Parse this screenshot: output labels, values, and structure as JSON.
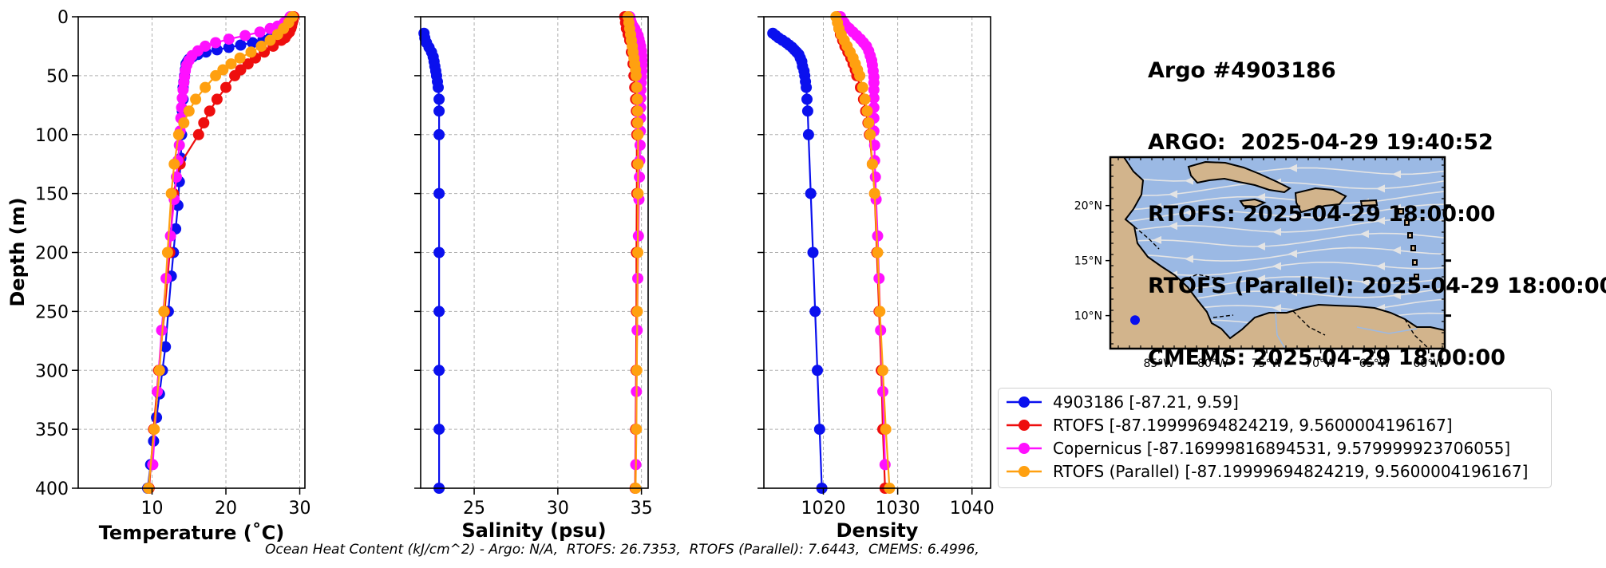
{
  "title": {
    "lines": [
      "Argo #4903186",
      "ARGO:  2025-04-29 19:40:52",
      "RTOFS: 2025-04-29 18:00:00",
      "RTOFS (Parallel): 2025-04-29 18:00:00",
      "CMEMS: 2025-04-29 18:00:00"
    ]
  },
  "footer": "Ocean Heat Content (kJ/cm^2) - Argo: N/A,  RTOFS: 26.7353,  RTOFS (Parallel): 7.6443,  CMEMS: 6.4996,",
  "colors": {
    "argo": "#0a10ee",
    "rtofs": "#ee0e0e",
    "copernicus": "#ff10ff",
    "rtofs_parallel": "#ffa010",
    "ocean": "#9bb9e4",
    "land": "#d2b48c",
    "stream": "#e4e4e4"
  },
  "legend": [
    {
      "label": "4903186 [-87.21, 9.59]",
      "color": "#0a10ee"
    },
    {
      "label": "RTOFS [-87.19999694824219, 9.5600004196167]",
      "color": "#ee0e0e"
    },
    {
      "label": "Copernicus [-87.16999816894531, 9.579999923706055]",
      "color": "#ff10ff"
    },
    {
      "label": "RTOFS (Parallel) [-87.19999694824219, 9.5600004196167]",
      "color": "#ffa010"
    }
  ],
  "map": {
    "xticks": [
      "85°W",
      "80°W",
      "75°W",
      "70°W",
      "65°W",
      "60°W"
    ],
    "yticks": [
      "20°N",
      "15°N",
      "10°N"
    ],
    "float_position": [
      -87.21,
      9.59
    ]
  },
  "chart_data": [
    {
      "type": "line",
      "xlabel": "Temperature (˚C)",
      "ylabel": "Depth (m)",
      "xticks": [
        10,
        20,
        30
      ],
      "yticks": [
        0,
        50,
        100,
        150,
        200,
        250,
        300,
        350,
        400
      ],
      "xlim": [
        0,
        30.7
      ],
      "ylim": [
        400,
        0
      ],
      "grid": true,
      "series": [
        {
          "name": "4903186",
          "depth": [
            14,
            16,
            18,
            20,
            22,
            24,
            26,
            28,
            30,
            32,
            34,
            36,
            38,
            40,
            45,
            50,
            55,
            60,
            70,
            80,
            100,
            120,
            140,
            160,
            180,
            200,
            220,
            250,
            280,
            300,
            320,
            340,
            360,
            380,
            400
          ],
          "values": [
            27.3,
            26.8,
            26.0,
            25.0,
            23.6,
            22.0,
            20.4,
            18.8,
            17.3,
            16.2,
            15.5,
            15.0,
            14.8,
            14.6,
            14.5,
            14.4,
            14.3,
            14.2,
            14.2,
            14.1,
            14.0,
            13.9,
            13.7,
            13.5,
            13.2,
            12.9,
            12.6,
            12.2,
            11.8,
            11.4,
            11.0,
            10.6,
            10.2,
            9.8,
            9.4
          ]
        },
        {
          "name": "RTOFS",
          "depth": [
            0,
            3,
            5,
            8,
            10,
            13,
            15,
            18,
            20,
            25,
            30,
            35,
            40,
            45,
            50,
            60,
            70,
            80,
            90,
            100,
            125,
            150,
            200,
            250,
            300,
            350,
            400
          ],
          "values": [
            29.2,
            29.1,
            29.0,
            28.9,
            28.8,
            28.6,
            28.3,
            28.0,
            27.5,
            26.4,
            25.2,
            24.0,
            23.0,
            22.0,
            21.2,
            20.0,
            18.8,
            17.8,
            17.0,
            16.3,
            13.8,
            12.9,
            12.4,
            11.7,
            10.9,
            10.2,
            9.6
          ]
        },
        {
          "name": "Copernicus",
          "depth": [
            0,
            3,
            5,
            8,
            10,
            13,
            16,
            19,
            22,
            25,
            29,
            33,
            37,
            41,
            46,
            51,
            56,
            62,
            69,
            77,
            86,
            97,
            109,
            122,
            136,
            155,
            186,
            222,
            266,
            318,
            380
          ],
          "values": [
            28.7,
            28.4,
            27.9,
            27.0,
            26.0,
            24.6,
            22.6,
            20.4,
            18.6,
            17.2,
            16.2,
            15.4,
            15.0,
            14.7,
            14.5,
            14.4,
            14.3,
            14.2,
            14.1,
            14.0,
            13.9,
            13.8,
            13.7,
            13.5,
            13.3,
            13.0,
            12.5,
            11.9,
            11.3,
            10.7,
            10.1
          ]
        },
        {
          "name": "RTOFS (Parallel)",
          "depth": [
            0,
            5,
            10,
            15,
            20,
            25,
            30,
            35,
            40,
            45,
            50,
            60,
            70,
            80,
            90,
            100,
            125,
            150,
            200,
            250,
            300,
            350,
            400
          ],
          "values": [
            29.0,
            28.5,
            27.8,
            27.0,
            26.0,
            24.8,
            23.4,
            21.9,
            20.7,
            19.6,
            18.6,
            17.2,
            15.9,
            15.0,
            14.3,
            13.6,
            13.0,
            12.6,
            12.1,
            11.6,
            11.0,
            10.3,
            9.5
          ]
        }
      ]
    },
    {
      "type": "line",
      "xlabel": "Salinity (psu)",
      "xticks": [
        25,
        30,
        35
      ],
      "xlim": [
        21.8,
        35.4
      ],
      "ylim": [
        400,
        0
      ],
      "grid": true,
      "series": [
        {
          "name": "4903186",
          "depth": [
            14,
            18,
            22,
            26,
            30,
            34,
            38,
            42,
            46,
            50,
            55,
            60,
            70,
            80,
            100,
            150,
            200,
            250,
            300,
            350,
            400
          ],
          "values": [
            22.0,
            22.05,
            22.15,
            22.3,
            22.45,
            22.55,
            22.6,
            22.65,
            22.7,
            22.75,
            22.8,
            22.85,
            22.9,
            22.9,
            22.9,
            22.9,
            22.9,
            22.9,
            22.9,
            22.9,
            22.9
          ]
        },
        {
          "name": "RTOFS",
          "depth": [
            0,
            5,
            10,
            15,
            20,
            30,
            40,
            50,
            60,
            70,
            80,
            90,
            100,
            125,
            150,
            200,
            250,
            300,
            350,
            400
          ],
          "values": [
            34.0,
            34.05,
            34.1,
            34.2,
            34.3,
            34.4,
            34.5,
            34.55,
            34.6,
            34.65,
            34.7,
            34.7,
            34.72,
            34.72,
            34.72,
            34.7,
            34.7,
            34.68,
            34.65,
            34.62
          ]
        },
        {
          "name": "Copernicus",
          "depth": [
            0,
            3,
            5,
            8,
            10,
            13,
            16,
            19,
            22,
            25,
            29,
            33,
            37,
            41,
            46,
            51,
            56,
            62,
            69,
            77,
            86,
            97,
            109,
            122,
            136,
            155,
            186,
            222,
            266,
            318,
            380
          ],
          "values": [
            34.3,
            34.35,
            34.4,
            34.5,
            34.6,
            34.7,
            34.8,
            34.85,
            34.9,
            34.95,
            35.0,
            35.02,
            35.03,
            35.03,
            35.02,
            35.0,
            34.98,
            34.97,
            34.96,
            34.95,
            34.94,
            34.93,
            34.92,
            34.9,
            34.88,
            34.85,
            34.82,
            34.78,
            34.74,
            34.7,
            34.66
          ]
        },
        {
          "name": "RTOFS (Parallel)",
          "depth": [
            0,
            5,
            10,
            15,
            20,
            25,
            30,
            35,
            40,
            45,
            50,
            60,
            70,
            80,
            90,
            100,
            125,
            150,
            200,
            250,
            300,
            350,
            400
          ],
          "values": [
            34.2,
            34.25,
            34.3,
            34.35,
            34.4,
            34.45,
            34.5,
            34.55,
            34.6,
            34.65,
            34.68,
            34.72,
            34.75,
            34.77,
            34.78,
            34.8,
            34.8,
            34.8,
            34.78,
            34.75,
            34.72,
            34.7,
            34.65
          ]
        }
      ]
    },
    {
      "type": "line",
      "xlabel": "Density",
      "xticks": [
        1020,
        1030,
        1040
      ],
      "xlim": [
        1012,
        1042.5
      ],
      "ylim": [
        400,
        0
      ],
      "grid": true,
      "series": [
        {
          "name": "4903186",
          "depth": [
            14,
            16,
            18,
            20,
            22,
            24,
            26,
            28,
            30,
            32,
            35,
            38,
            42,
            46,
            50,
            55,
            60,
            70,
            80,
            100,
            150,
            200,
            250,
            300,
            350,
            400
          ],
          "values": [
            1013.2,
            1013.6,
            1014.0,
            1014.5,
            1015.0,
            1015.4,
            1015.8,
            1016.1,
            1016.4,
            1016.7,
            1016.9,
            1017.1,
            1017.2,
            1017.4,
            1017.5,
            1017.6,
            1017.7,
            1017.8,
            1017.9,
            1018.0,
            1018.3,
            1018.6,
            1018.9,
            1019.2,
            1019.5,
            1019.8
          ]
        },
        {
          "name": "RTOFS",
          "depth": [
            0,
            5,
            10,
            15,
            20,
            25,
            30,
            35,
            40,
            45,
            50,
            60,
            70,
            80,
            90,
            100,
            125,
            150,
            200,
            250,
            300,
            350,
            400
          ],
          "values": [
            1021.9,
            1022.0,
            1022.1,
            1022.3,
            1022.6,
            1022.9,
            1023.3,
            1023.7,
            1024.0,
            1024.3,
            1024.5,
            1025.0,
            1025.4,
            1025.7,
            1026.0,
            1026.2,
            1026.6,
            1026.9,
            1027.2,
            1027.5,
            1027.8,
            1028.0,
            1028.3
          ]
        },
        {
          "name": "Copernicus",
          "depth": [
            0,
            3,
            5,
            8,
            10,
            13,
            16,
            19,
            22,
            25,
            29,
            33,
            37,
            41,
            46,
            51,
            56,
            62,
            69,
            77,
            86,
            97,
            109,
            122,
            136,
            155,
            186,
            222,
            266,
            318,
            380
          ],
          "values": [
            1022.3,
            1022.5,
            1022.8,
            1023.1,
            1023.5,
            1024.0,
            1024.5,
            1025.0,
            1025.4,
            1025.8,
            1026.1,
            1026.3,
            1026.5,
            1026.6,
            1026.7,
            1026.8,
            1026.8,
            1026.8,
            1026.8,
            1026.8,
            1026.8,
            1026.8,
            1026.9,
            1026.9,
            1027.0,
            1027.1,
            1027.3,
            1027.5,
            1027.7,
            1028.0,
            1028.3
          ]
        },
        {
          "name": "RTOFS (Parallel)",
          "depth": [
            0,
            5,
            10,
            15,
            20,
            25,
            30,
            35,
            40,
            45,
            50,
            60,
            70,
            80,
            90,
            100,
            125,
            150,
            200,
            250,
            300,
            350,
            400
          ],
          "values": [
            1021.7,
            1021.9,
            1022.1,
            1022.4,
            1022.8,
            1023.2,
            1023.6,
            1024.0,
            1024.3,
            1024.6,
            1024.9,
            1025.3,
            1025.6,
            1025.9,
            1026.1,
            1026.3,
            1026.6,
            1026.9,
            1027.3,
            1027.6,
            1028.0,
            1028.4,
            1028.9
          ]
        }
      ]
    }
  ]
}
